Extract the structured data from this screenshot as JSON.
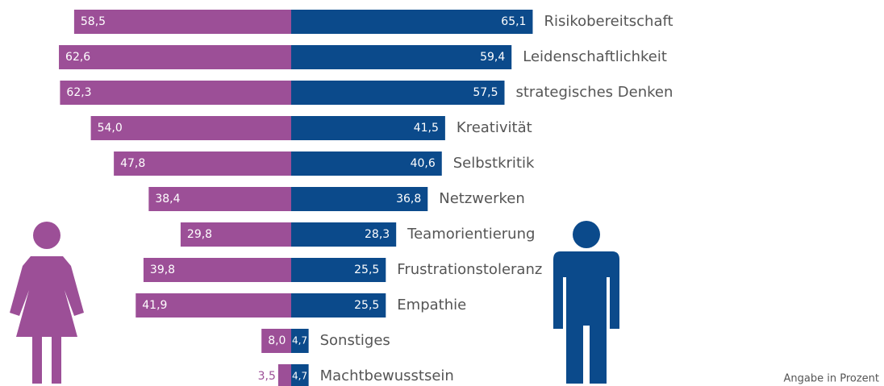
{
  "chart_data": {
    "type": "butterfly",
    "categories": [
      "Risikobereitschaft",
      "Leidenschaftlichkeit",
      "strategisches Denken",
      "Kreativität",
      "Selbstkritik",
      "Netzwerken",
      "Teamorientierung",
      "Frustrationstoleranz",
      "Empathie",
      "Sonstiges",
      "Machtbewusstsein"
    ],
    "series": [
      {
        "color": "#9c4f97",
        "values": [
          58.5,
          62.6,
          62.3,
          54.0,
          47.8,
          38.4,
          29.8,
          39.8,
          41.9,
          8.0,
          3.5
        ],
        "value_labels": [
          "58,5",
          "62,6",
          "62,3",
          "54,0",
          "47,8",
          "38,4",
          "29,8",
          "39,8",
          "41,9",
          "8,0",
          "3,5"
        ]
      },
      {
        "color": "#0b4a8b",
        "values": [
          65.1,
          59.4,
          57.5,
          41.5,
          40.6,
          36.8,
          28.3,
          25.5,
          25.5,
          4.7,
          4.7
        ],
        "value_labels": [
          "65,1",
          "59,4",
          "57,5",
          "41,5",
          "40,6",
          "36,8",
          "28,3",
          "25,5",
          "25,5",
          "4,7",
          "4,7"
        ]
      }
    ],
    "note": "Angabe in Prozent"
  }
}
